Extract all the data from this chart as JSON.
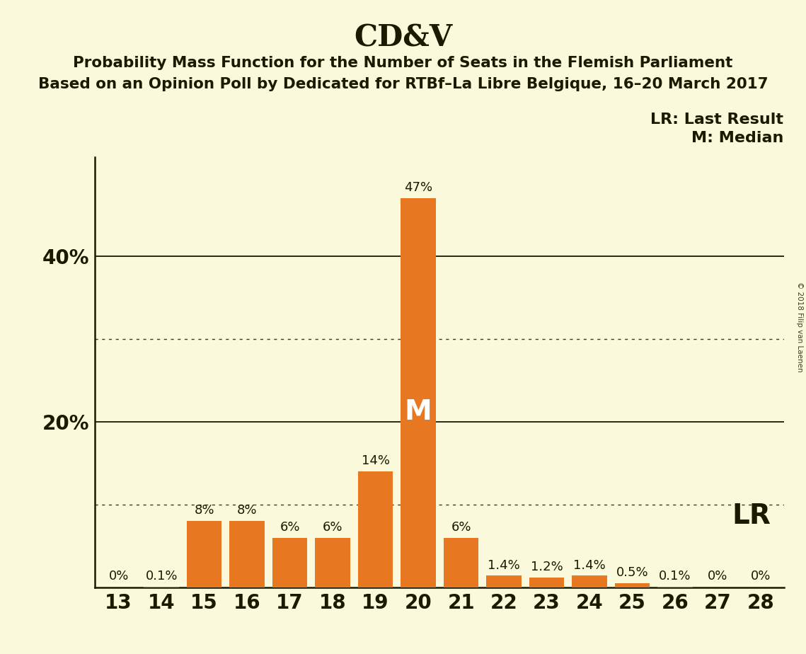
{
  "title": "CD&V",
  "subtitle1": "Probability Mass Function for the Number of Seats in the Flemish Parliament",
  "subtitle2": "Based on an Opinion Poll by Dedicated for RTBf–La Libre Belgique, 16–20 March 2017",
  "categories": [
    13,
    14,
    15,
    16,
    17,
    18,
    19,
    20,
    21,
    22,
    23,
    24,
    25,
    26,
    27,
    28
  ],
  "values": [
    0.0,
    0.1,
    8.0,
    8.0,
    6.0,
    6.0,
    14.0,
    47.0,
    6.0,
    1.4,
    1.2,
    1.4,
    0.5,
    0.1,
    0.0,
    0.0
  ],
  "labels": [
    "0%",
    "0.1%",
    "8%",
    "8%",
    "6%",
    "6%",
    "14%",
    "47%",
    "6%",
    "1.4%",
    "1.2%",
    "1.4%",
    "0.5%",
    "0.1%",
    "0%",
    "0%"
  ],
  "bar_color": "#E87722",
  "background_color": "#FAF9DC",
  "text_color": "#1a1a00",
  "median_seat": 20,
  "lr_seat": 20,
  "dotted_yticks": [
    10,
    30
  ],
  "solid_yticks": [
    20,
    40
  ],
  "ylim": [
    0,
    52
  ],
  "legend_text1": "LR: Last Result",
  "legend_text2": "M: Median",
  "lr_label": "LR",
  "median_label": "M",
  "copyright_text": "© 2018 Filip van Laenen",
  "title_fontsize": 30,
  "subtitle_fontsize": 15.5,
  "bar_label_fontsize": 13,
  "tick_fontsize": 20,
  "legend_fontsize": 15,
  "median_fontsize": 28,
  "lr_fontsize": 28
}
